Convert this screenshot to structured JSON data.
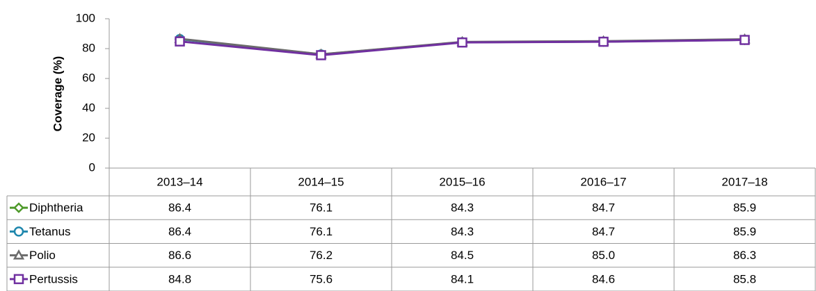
{
  "chart_data": {
    "type": "line",
    "y_label": "Coverage (%)",
    "categories": [
      "2013–14",
      "2014–15",
      "2015–16",
      "2016–17",
      "2017–18"
    ],
    "ylim": [
      0,
      100
    ],
    "yticks": [
      0,
      20,
      40,
      60,
      80,
      100
    ],
    "grid": false,
    "series": [
      {
        "name": "Diphtheria",
        "color": "#4e9a2a",
        "marker": "diamond",
        "values": [
          86.4,
          76.1,
          84.3,
          84.7,
          85.9
        ],
        "value_labels": [
          "86.4",
          "76.1",
          "84.3",
          "84.7",
          "85.9"
        ]
      },
      {
        "name": "Tetanus",
        "color": "#1f87ad",
        "marker": "circle",
        "values": [
          86.4,
          76.1,
          84.3,
          84.7,
          85.9
        ],
        "value_labels": [
          "86.4",
          "76.1",
          "84.3",
          "84.7",
          "85.9"
        ]
      },
      {
        "name": "Polio",
        "color": "#6b6b6b",
        "marker": "triangle",
        "values": [
          86.6,
          76.2,
          84.5,
          85.0,
          86.3
        ],
        "value_labels": [
          "86.6",
          "76.2",
          "84.5",
          "85.0",
          "86.3"
        ]
      },
      {
        "name": "Pertussis",
        "color": "#7030a0",
        "marker": "square",
        "values": [
          84.8,
          75.6,
          84.1,
          84.6,
          85.8
        ],
        "value_labels": [
          "84.8",
          "75.6",
          "84.1",
          "84.6",
          "85.8"
        ]
      }
    ]
  }
}
